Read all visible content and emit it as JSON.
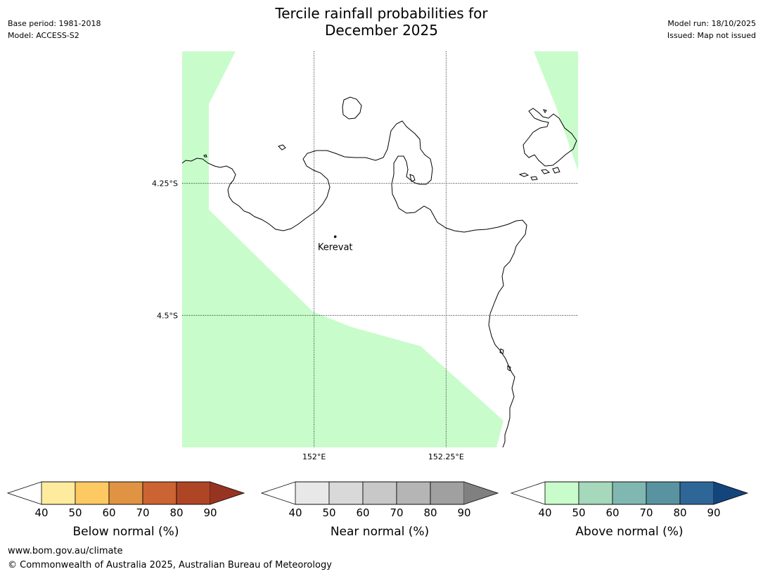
{
  "header": {
    "title_line1": "Tercile rainfall probabilities for",
    "title_line2": "December 2025",
    "base_period": "Base period: 1981-2018",
    "model": "Model: ACCESS-S2",
    "model_run": "Model run: 18/10/2025",
    "issued": "Issued: Map not issued"
  },
  "map": {
    "lon_range": [
      151.75,
      152.5
    ],
    "lat_range": [
      -4.75,
      -4.0
    ],
    "lat_gridlines": [
      {
        "value": -4.25,
        "label": "4.25°S"
      },
      {
        "value": -4.5,
        "label": "4.5°S"
      }
    ],
    "lon_gridlines": [
      {
        "value": 152.0,
        "label": "152°E"
      },
      {
        "value": 152.25,
        "label": "152.25°E"
      }
    ],
    "places": [
      {
        "name": "Kerevat",
        "lon": 152.04,
        "lat": -4.351
      }
    ],
    "shaded_category": "Above normal 40-50%",
    "shade_color": "#c9fccb"
  },
  "colorbars": [
    {
      "title": "Below normal (%)",
      "ticks": [
        "40",
        "50",
        "60",
        "70",
        "80",
        "90"
      ],
      "low_color": "#ffffff",
      "colors": [
        "#feeb9e",
        "#fdc963",
        "#e09343",
        "#cb6332",
        "#ae4626"
      ],
      "high_color": "#973421"
    },
    {
      "title": "Near normal (%)",
      "ticks": [
        "40",
        "50",
        "60",
        "70",
        "80",
        "90"
      ],
      "low_color": "#ffffff",
      "colors": [
        "#e8e8e8",
        "#d9d9d9",
        "#c8c8c8",
        "#b5b5b5",
        "#a0a0a0"
      ],
      "high_color": "#808080"
    },
    {
      "title": "Above normal (%)",
      "ticks": [
        "40",
        "50",
        "60",
        "70",
        "80",
        "90"
      ],
      "low_color": "#ffffff",
      "colors": [
        "#c9fccb",
        "#a6d8bb",
        "#81b7b1",
        "#5993a0",
        "#2f6698"
      ],
      "high_color": "#13457c"
    }
  ],
  "footer": {
    "url": "www.bom.gov.au/climate",
    "copyright": "© Commonwealth of Australia 2025, Australian Bureau of Meteorology"
  }
}
